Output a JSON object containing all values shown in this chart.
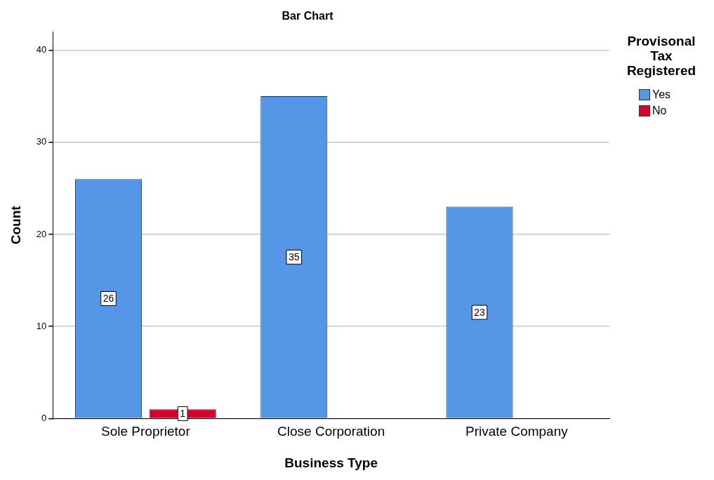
{
  "chart_data": {
    "type": "bar",
    "title": "Bar Chart",
    "xlabel": "Business Type",
    "ylabel": "Count",
    "legend_title": "Provisonal Tax Registered",
    "categories": [
      "Sole Proprietor",
      "Close Corporation",
      "Private Company"
    ],
    "series": [
      {
        "name": "Yes",
        "color": "#5596e6",
        "values": [
          26,
          35,
          23
        ]
      },
      {
        "name": "No",
        "color": "#d2042d",
        "values": [
          1,
          null,
          null
        ]
      }
    ],
    "ylim": [
      0,
      42
    ],
    "yticks": [
      0,
      10,
      20,
      30,
      40
    ],
    "grid": "y",
    "legend": "right",
    "data_labels": true
  }
}
